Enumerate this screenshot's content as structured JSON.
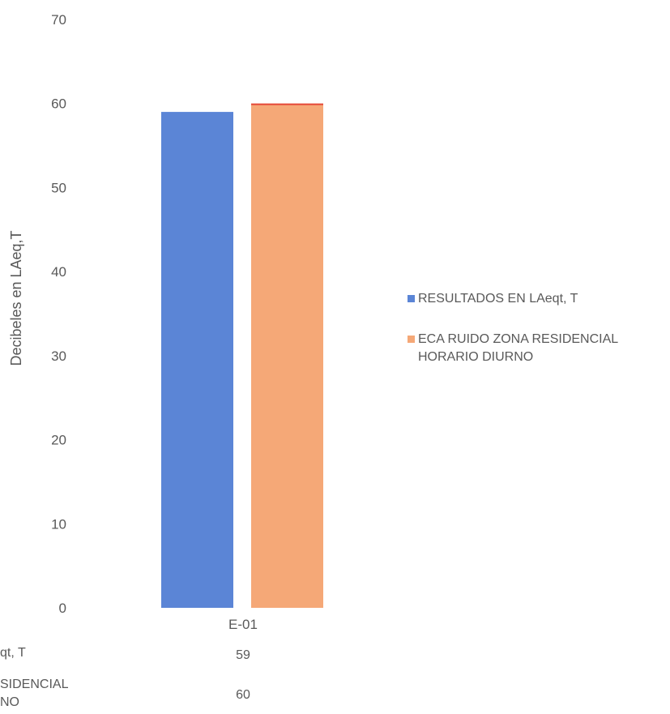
{
  "chart_data": {
    "type": "bar",
    "ylabel": "Decibeles en LAeq,T",
    "ylim": [
      0,
      70
    ],
    "yticks": [
      0,
      10,
      20,
      30,
      40,
      50,
      60,
      70
    ],
    "categories": [
      "E-01"
    ],
    "grid": false,
    "legend_position": "right",
    "series": [
      {
        "name": "RESULTADOS EN LAeqt, T",
        "values": [
          59
        ],
        "color": "#5b85d6"
      },
      {
        "name": "ECA RUIDO ZONA RESIDENCIAL\nHORARIO DIURNO",
        "values": [
          60
        ],
        "color": "#f5a877",
        "top_color": "#e64b3c"
      }
    ],
    "data_table": {
      "row_labels": [
        "qt, T",
        "SIDENCIAL\nNO"
      ],
      "values": [
        [
          "59"
        ],
        [
          "60"
        ]
      ]
    }
  }
}
